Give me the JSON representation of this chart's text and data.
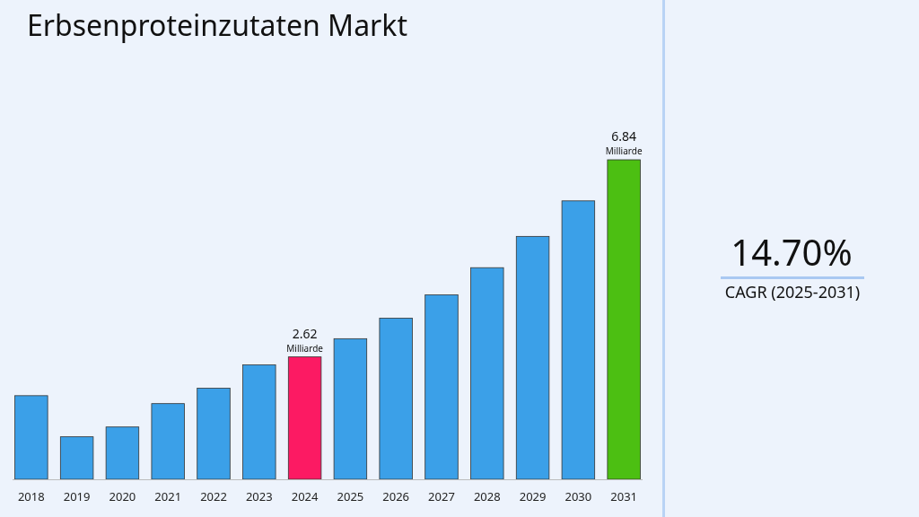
{
  "chart_data": {
    "type": "bar",
    "title": "Erbsenproteinzutaten Markt",
    "categories": [
      "2018",
      "2019",
      "2020",
      "2021",
      "2022",
      "2023",
      "2024",
      "2025",
      "2026",
      "2027",
      "2028",
      "2029",
      "2030",
      "2031"
    ],
    "values": [
      1.79,
      0.91,
      1.12,
      1.62,
      1.95,
      2.45,
      2.62,
      3.01,
      3.45,
      3.95,
      4.53,
      5.2,
      5.96,
      6.84
    ],
    "colors": [
      "#3ba0e8",
      "#3ba0e8",
      "#3ba0e8",
      "#3ba0e8",
      "#3ba0e8",
      "#3ba0e8",
      "#fc1a63",
      "#3ba0e8",
      "#3ba0e8",
      "#3ba0e8",
      "#3ba0e8",
      "#3ba0e8",
      "#3ba0e8",
      "#4cbf12"
    ],
    "value_labels": [
      null,
      null,
      null,
      null,
      null,
      null,
      "2.62\nMilliarde",
      null,
      null,
      null,
      null,
      null,
      null,
      "6.84\nMilliarde"
    ],
    "annotations": [
      "14.70%",
      "CAGR (2025-2031)"
    ]
  }
}
